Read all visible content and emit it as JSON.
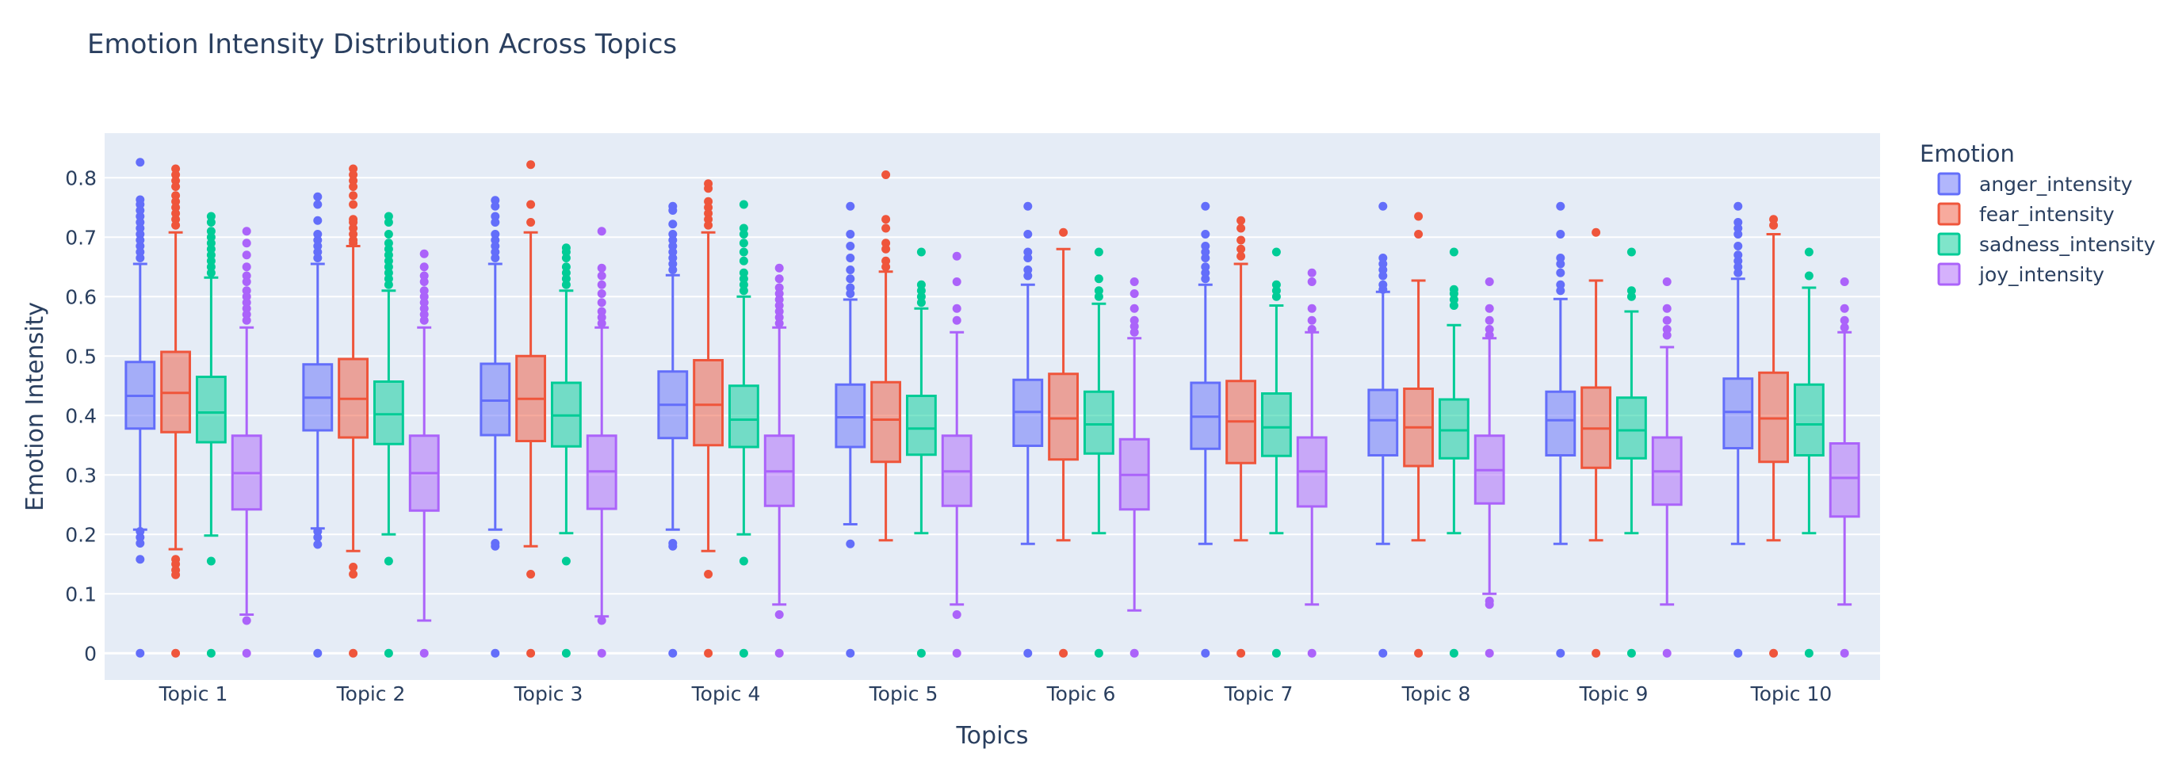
{
  "chart_data": {
    "type": "box",
    "title": "Emotion Intensity Distribution Across Topics",
    "xlabel": "Topics",
    "ylabel": "Emotion Intensity",
    "ylim": [
      -0.045,
      0.875
    ],
    "yticks": [
      0,
      0.1,
      0.2,
      0.3,
      0.4,
      0.5,
      0.6,
      0.7,
      0.8
    ],
    "grid": true,
    "legend_title": "Emotion",
    "legend_position": "right",
    "categories": [
      "Topic 1",
      "Topic 2",
      "Topic 3",
      "Topic 4",
      "Topic 5",
      "Topic 6",
      "Topic 7",
      "Topic 8",
      "Topic 9",
      "Topic 10"
    ],
    "series": [
      {
        "name": "anger_intensity",
        "color": "#636efa",
        "fill": "rgba(99,110,250,0.5)",
        "boxes": [
          {
            "q1": 0.378,
            "median": 0.433,
            "q3": 0.49,
            "low": 0.208,
            "high": 0.655,
            "outliers": [
              0.826,
              0.763,
              0.755,
              0.745,
              0.735,
              0.725,
              0.715,
              0.705,
              0.695,
              0.685,
              0.675,
              0.665,
              0.205,
              0.195,
              0.185,
              0.158,
              0
            ]
          },
          {
            "q1": 0.375,
            "median": 0.43,
            "q3": 0.486,
            "low": 0.21,
            "high": 0.655,
            "outliers": [
              0.768,
              0.755,
              0.728,
              0.705,
              0.695,
              0.685,
              0.675,
              0.665,
              0.205,
              0.195,
              0.183,
              0
            ]
          },
          {
            "q1": 0.367,
            "median": 0.425,
            "q3": 0.487,
            "low": 0.208,
            "high": 0.655,
            "outliers": [
              0.762,
              0.752,
              0.735,
              0.725,
              0.705,
              0.695,
              0.685,
              0.675,
              0.665,
              0.185,
              0.18,
              0
            ]
          },
          {
            "q1": 0.362,
            "median": 0.418,
            "q3": 0.474,
            "low": 0.208,
            "high": 0.636,
            "outliers": [
              0.752,
              0.745,
              0.722,
              0.705,
              0.695,
              0.685,
              0.675,
              0.665,
              0.655,
              0.645,
              0.185,
              0.18,
              0
            ]
          },
          {
            "q1": 0.347,
            "median": 0.397,
            "q3": 0.452,
            "low": 0.217,
            "high": 0.595,
            "outliers": [
              0.752,
              0.705,
              0.685,
              0.665,
              0.645,
              0.63,
              0.615,
              0.605,
              0.184,
              0
            ]
          },
          {
            "q1": 0.349,
            "median": 0.406,
            "q3": 0.46,
            "low": 0.184,
            "high": 0.62,
            "outliers": [
              0.752,
              0.705,
              0.675,
              0.665,
              0.645,
              0.635,
              0
            ]
          },
          {
            "q1": 0.344,
            "median": 0.398,
            "q3": 0.455,
            "low": 0.184,
            "high": 0.62,
            "outliers": [
              0.752,
              0.705,
              0.685,
              0.675,
              0.665,
              0.65,
              0.64,
              0.63,
              0
            ]
          },
          {
            "q1": 0.333,
            "median": 0.392,
            "q3": 0.443,
            "low": 0.184,
            "high": 0.608,
            "outliers": [
              0.752,
              0.665,
              0.655,
              0.645,
              0.635,
              0.62,
              0.612,
              0
            ]
          },
          {
            "q1": 0.333,
            "median": 0.392,
            "q3": 0.44,
            "low": 0.184,
            "high": 0.596,
            "outliers": [
              0.752,
              0.705,
              0.665,
              0.655,
              0.64,
              0.62,
              0.61,
              0
            ]
          },
          {
            "q1": 0.345,
            "median": 0.406,
            "q3": 0.462,
            "low": 0.184,
            "high": 0.63,
            "outliers": [
              0.752,
              0.725,
              0.715,
              0.705,
              0.685,
              0.67,
              0.66,
              0.65,
              0.64,
              0
            ]
          }
        ]
      },
      {
        "name": "fear_intensity",
        "color": "#EF553B",
        "fill": "rgba(239,85,59,0.5)",
        "boxes": [
          {
            "q1": 0.372,
            "median": 0.438,
            "q3": 0.507,
            "low": 0.175,
            "high": 0.708,
            "outliers": [
              0.815,
              0.805,
              0.795,
              0.785,
              0.77,
              0.76,
              0.75,
              0.74,
              0.73,
              0.72,
              0.158,
              0.15,
              0.14,
              0.132,
              0
            ]
          },
          {
            "q1": 0.363,
            "median": 0.428,
            "q3": 0.495,
            "low": 0.172,
            "high": 0.685,
            "outliers": [
              0.815,
              0.805,
              0.795,
              0.785,
              0.77,
              0.755,
              0.73,
              0.725,
              0.715,
              0.705,
              0.695,
              0.69,
              0.145,
              0.133,
              0
            ]
          },
          {
            "q1": 0.357,
            "median": 0.428,
            "q3": 0.5,
            "low": 0.18,
            "high": 0.708,
            "outliers": [
              0.822,
              0.755,
              0.725,
              0.133,
              0
            ]
          },
          {
            "q1": 0.35,
            "median": 0.418,
            "q3": 0.493,
            "low": 0.172,
            "high": 0.708,
            "outliers": [
              0.79,
              0.782,
              0.76,
              0.75,
              0.74,
              0.73,
              0.72,
              0.133,
              0
            ]
          },
          {
            "q1": 0.322,
            "median": 0.393,
            "q3": 0.456,
            "low": 0.19,
            "high": 0.642,
            "outliers": [
              0.805,
              0.73,
              0.715,
              0.69,
              0.68,
              0.66,
              0.65
            ]
          },
          {
            "q1": 0.326,
            "median": 0.395,
            "q3": 0.47,
            "low": 0.19,
            "high": 0.68,
            "outliers": [
              0.708,
              0
            ]
          },
          {
            "q1": 0.32,
            "median": 0.39,
            "q3": 0.458,
            "low": 0.19,
            "high": 0.655,
            "outliers": [
              0.728,
              0.715,
              0.695,
              0.68,
              0.668,
              0
            ]
          },
          {
            "q1": 0.315,
            "median": 0.38,
            "q3": 0.445,
            "low": 0.19,
            "high": 0.627,
            "outliers": [
              0.735,
              0.705,
              0
            ]
          },
          {
            "q1": 0.312,
            "median": 0.378,
            "q3": 0.447,
            "low": 0.19,
            "high": 0.627,
            "outliers": [
              0.708,
              0
            ]
          },
          {
            "q1": 0.322,
            "median": 0.395,
            "q3": 0.472,
            "low": 0.19,
            "high": 0.705,
            "outliers": [
              0.73,
              0.72,
              0
            ]
          }
        ]
      },
      {
        "name": "sadness_intensity",
        "color": "#00cc96",
        "fill": "rgba(0,204,150,0.5)",
        "boxes": [
          {
            "q1": 0.355,
            "median": 0.405,
            "q3": 0.465,
            "low": 0.198,
            "high": 0.632,
            "outliers": [
              0.735,
              0.725,
              0.71,
              0.7,
              0.69,
              0.68,
              0.67,
              0.66,
              0.65,
              0.64,
              0.155,
              0
            ]
          },
          {
            "q1": 0.352,
            "median": 0.402,
            "q3": 0.457,
            "low": 0.2,
            "high": 0.61,
            "outliers": [
              0.735,
              0.725,
              0.705,
              0.69,
              0.68,
              0.67,
              0.66,
              0.65,
              0.64,
              0.63,
              0.62,
              0.155,
              0
            ]
          },
          {
            "q1": 0.348,
            "median": 0.4,
            "q3": 0.455,
            "low": 0.202,
            "high": 0.61,
            "outliers": [
              0.682,
              0.675,
              0.665,
              0.65,
              0.64,
              0.63,
              0.62,
              0.155,
              0
            ]
          },
          {
            "q1": 0.347,
            "median": 0.393,
            "q3": 0.45,
            "low": 0.2,
            "high": 0.6,
            "outliers": [
              0.755,
              0.715,
              0.705,
              0.69,
              0.675,
              0.66,
              0.64,
              0.63,
              0.62,
              0.61,
              0.155,
              0
            ]
          },
          {
            "q1": 0.334,
            "median": 0.378,
            "q3": 0.433,
            "low": 0.202,
            "high": 0.58,
            "outliers": [
              0.675,
              0.62,
              0.61,
              0.6,
              0.59,
              0
            ]
          },
          {
            "q1": 0.336,
            "median": 0.385,
            "q3": 0.44,
            "low": 0.202,
            "high": 0.588,
            "outliers": [
              0.675,
              0.63,
              0.61,
              0.6,
              0
            ]
          },
          {
            "q1": 0.332,
            "median": 0.38,
            "q3": 0.437,
            "low": 0.202,
            "high": 0.585,
            "outliers": [
              0.675,
              0.62,
              0.61,
              0.6,
              0
            ]
          },
          {
            "q1": 0.328,
            "median": 0.375,
            "q3": 0.427,
            "low": 0.202,
            "high": 0.552,
            "outliers": [
              0.675,
              0.612,
              0.605,
              0.595,
              0.585,
              0
            ]
          },
          {
            "q1": 0.328,
            "median": 0.375,
            "q3": 0.43,
            "low": 0.202,
            "high": 0.575,
            "outliers": [
              0.675,
              0.61,
              0.6,
              0
            ]
          },
          {
            "q1": 0.333,
            "median": 0.385,
            "q3": 0.452,
            "low": 0.202,
            "high": 0.615,
            "outliers": [
              0.675,
              0.635,
              0
            ]
          }
        ]
      },
      {
        "name": "joy_intensity",
        "color": "#ab63fa",
        "fill": "rgba(171,99,250,0.5)",
        "boxes": [
          {
            "q1": 0.242,
            "median": 0.303,
            "q3": 0.366,
            "low": 0.065,
            "high": 0.548,
            "outliers": [
              0.71,
              0.69,
              0.67,
              0.65,
              0.635,
              0.625,
              0.61,
              0.6,
              0.59,
              0.58,
              0.57,
              0.56,
              0.055,
              0
            ]
          },
          {
            "q1": 0.24,
            "median": 0.303,
            "q3": 0.366,
            "low": 0.055,
            "high": 0.548,
            "outliers": [
              0.672,
              0.65,
              0.635,
              0.625,
              0.61,
              0.6,
              0.59,
              0.58,
              0.57,
              0.56,
              0
            ]
          },
          {
            "q1": 0.243,
            "median": 0.306,
            "q3": 0.366,
            "low": 0.062,
            "high": 0.548,
            "outliers": [
              0.71,
              0.648,
              0.635,
              0.62,
              0.605,
              0.59,
              0.575,
              0.565,
              0.555,
              0.055,
              0
            ]
          },
          {
            "q1": 0.248,
            "median": 0.306,
            "q3": 0.366,
            "low": 0.082,
            "high": 0.548,
            "outliers": [
              0.648,
              0.63,
              0.615,
              0.605,
              0.595,
              0.585,
              0.575,
              0.565,
              0.555,
              0.065,
              0
            ]
          },
          {
            "q1": 0.248,
            "median": 0.306,
            "q3": 0.366,
            "low": 0.082,
            "high": 0.54,
            "outliers": [
              0.668,
              0.625,
              0.58,
              0.56,
              0.065,
              0
            ]
          },
          {
            "q1": 0.242,
            "median": 0.3,
            "q3": 0.36,
            "low": 0.072,
            "high": 0.53,
            "outliers": [
              0.625,
              0.605,
              0.58,
              0.56,
              0.55,
              0.54,
              0
            ]
          },
          {
            "q1": 0.247,
            "median": 0.306,
            "q3": 0.363,
            "low": 0.082,
            "high": 0.54,
            "outliers": [
              0.64,
              0.625,
              0.58,
              0.56,
              0.545,
              0
            ]
          },
          {
            "q1": 0.252,
            "median": 0.308,
            "q3": 0.366,
            "low": 0.1,
            "high": 0.53,
            "outliers": [
              0.625,
              0.58,
              0.56,
              0.545,
              0.535,
              0.088,
              0.082,
              0
            ]
          },
          {
            "q1": 0.25,
            "median": 0.306,
            "q3": 0.363,
            "low": 0.082,
            "high": 0.515,
            "outliers": [
              0.625,
              0.58,
              0.56,
              0.545,
              0.535,
              0
            ]
          },
          {
            "q1": 0.23,
            "median": 0.295,
            "q3": 0.353,
            "low": 0.082,
            "high": 0.54,
            "outliers": [
              0.625,
              0.58,
              0.56,
              0.548,
              0
            ]
          }
        ]
      }
    ]
  }
}
